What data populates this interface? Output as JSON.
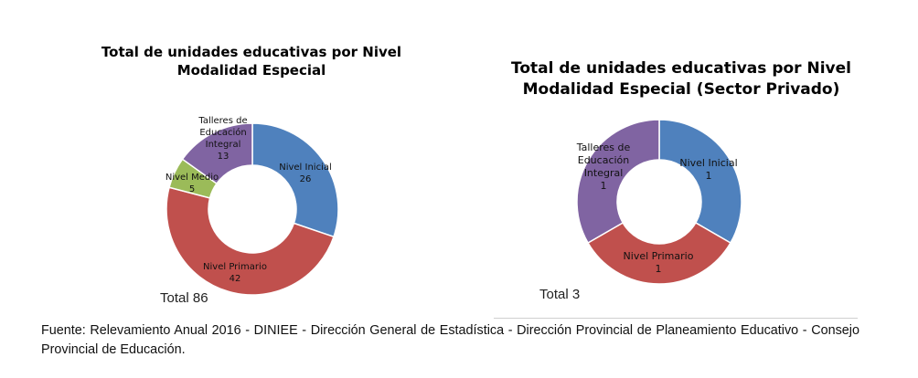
{
  "chart_data": [
    {
      "type": "pie",
      "title": "Total de unidades educativas por Nivel Modalidad Especial",
      "categories": [
        "Nivel Inicial",
        "Nivel Primario",
        "Nivel Medio",
        "Talleres de Educación Integral"
      ],
      "values": [
        26,
        42,
        5,
        13
      ],
      "total_label": "Total 86",
      "colors": [
        "#4f81bd",
        "#c0504d",
        "#9bbb59",
        "#8064a2"
      ],
      "donut": true
    },
    {
      "type": "pie",
      "title": "Total de unidades educativas por Nivel Modalidad Especial (Sector Privado)",
      "categories": [
        "Nivel Inicial",
        "Nivel Primario",
        "Talleres de Educación Integral"
      ],
      "values": [
        1,
        1,
        1
      ],
      "total_label": "Total 3",
      "colors": [
        "#4f81bd",
        "#c0504d",
        "#8064a2"
      ],
      "donut": true
    }
  ],
  "source_note": "Fuente: Relevamiento Anual 2016 - DINIEE - Dirección General de Estadística - Dirección Provincial de Planeamiento Educativo - Consejo Provincial de Educación."
}
